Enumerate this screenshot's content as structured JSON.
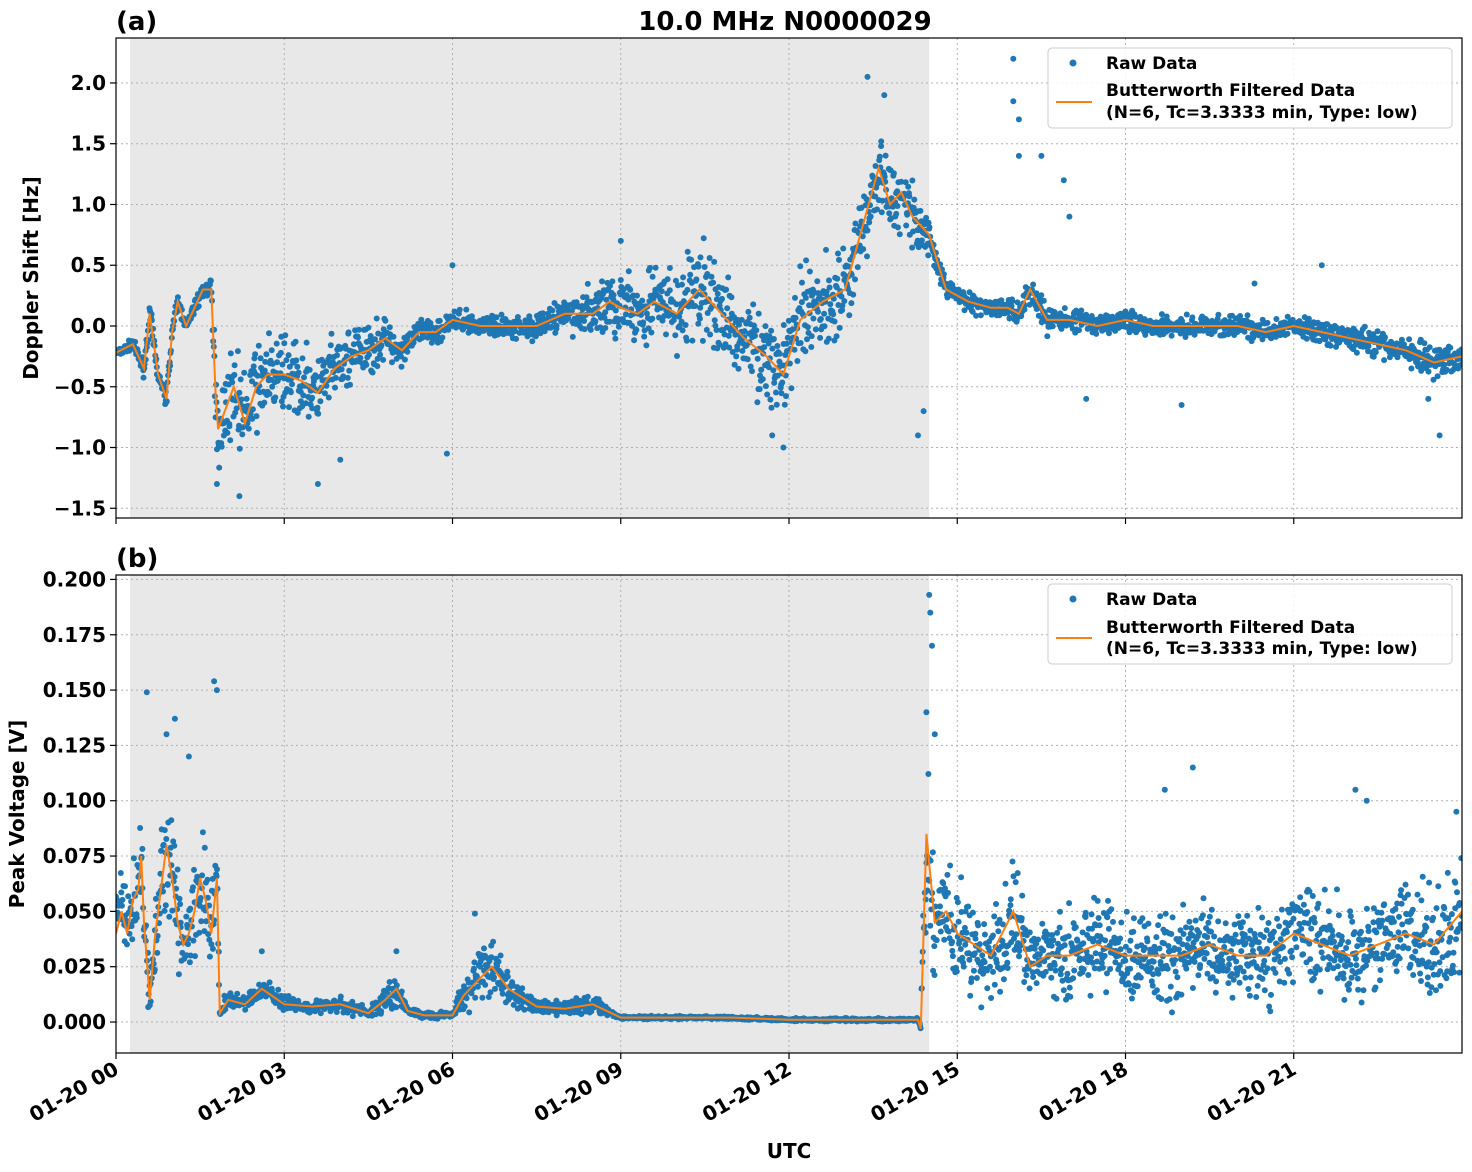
{
  "figure_title": "10.0 MHz N0000029",
  "x_axis": {
    "label": "UTC",
    "tick_labels": [
      "01-20 00",
      "01-20 03",
      "01-20 06",
      "01-20 09",
      "01-20 12",
      "01-20 15",
      "01-20 18",
      "01-20 21"
    ],
    "tick_hours": [
      0,
      3,
      6,
      9,
      12,
      15,
      18,
      21
    ],
    "range_hours": [
      0,
      24
    ]
  },
  "legend": {
    "raw_label": "Raw Data",
    "filtered_label_line1": "Butterworth Filtered Data",
    "filtered_label_line2": "(N=6, Tc=3.3333 min, Type: low)"
  },
  "colors": {
    "raw": "#1f77b4",
    "filtered": "#ff7f0e",
    "shade": "#e8e8e8"
  },
  "chart_data": [
    {
      "type": "scatter",
      "panel_label": "(a)",
      "ylabel": "Doppler Shift [Hz]",
      "ylim": [
        -1.58,
        2.37
      ],
      "yticks": [
        -1.5,
        -1.0,
        -0.5,
        0.0,
        0.5,
        1.0,
        1.5,
        2.0
      ],
      "ytick_labels": [
        "−1.5",
        "−1.0",
        "−0.5",
        "0.0",
        "0.5",
        "1.0",
        "1.5",
        "2.0"
      ],
      "grid": true,
      "legend_position": "top-right",
      "shaded_region_hours": [
        0.25,
        14.5
      ],
      "series": [
        {
          "name": "Butterworth Filtered Data",
          "kind": "line",
          "x": [
            0,
            0.3,
            0.5,
            0.6,
            0.75,
            0.9,
            1.0,
            1.1,
            1.25,
            1.4,
            1.55,
            1.7,
            1.78,
            1.82,
            1.9,
            2.1,
            2.3,
            2.5,
            2.7,
            3.0,
            3.3,
            3.6,
            3.9,
            4.2,
            4.5,
            4.8,
            5.1,
            5.4,
            5.7,
            6.0,
            6.5,
            7.0,
            7.5,
            8.0,
            8.5,
            8.8,
            9.0,
            9.3,
            9.6,
            10.0,
            10.4,
            10.8,
            11.2,
            11.6,
            11.9,
            12.2,
            12.6,
            13.0,
            13.3,
            13.6,
            13.8,
            14.0,
            14.2,
            14.5,
            14.8,
            15.2,
            15.6,
            15.9,
            16.1,
            16.3,
            16.6,
            17.0,
            17.5,
            18.0,
            18.5,
            19.0,
            19.5,
            20.0,
            20.5,
            21.0,
            21.5,
            22.0,
            22.5,
            23.0,
            23.5,
            24.0
          ],
          "y": [
            -0.22,
            -0.15,
            -0.35,
            0.1,
            -0.4,
            -0.6,
            -0.05,
            0.2,
            0.0,
            0.15,
            0.3,
            0.3,
            -0.6,
            -0.85,
            -0.75,
            -0.5,
            -0.8,
            -0.5,
            -0.4,
            -0.4,
            -0.45,
            -0.55,
            -0.35,
            -0.25,
            -0.2,
            -0.1,
            -0.2,
            -0.05,
            -0.05,
            0.05,
            0.0,
            0.0,
            0.0,
            0.1,
            0.1,
            0.2,
            0.15,
            0.1,
            0.2,
            0.1,
            0.3,
            0.1,
            -0.1,
            -0.25,
            -0.4,
            0.05,
            0.2,
            0.3,
            0.8,
            1.3,
            1.0,
            1.1,
            0.9,
            0.75,
            0.3,
            0.2,
            0.15,
            0.15,
            0.1,
            0.3,
            0.05,
            0.05,
            0.0,
            0.05,
            0.0,
            0.0,
            0.0,
            0.0,
            -0.05,
            0.0,
            -0.05,
            -0.1,
            -0.15,
            -0.2,
            -0.3,
            -0.25
          ]
        },
        {
          "name": "Raw Data",
          "kind": "scatter_envelope",
          "x": [
            0,
            0.3,
            0.5,
            0.6,
            0.75,
            0.9,
            1.0,
            1.1,
            1.25,
            1.4,
            1.55,
            1.7,
            1.78,
            1.82,
            1.9,
            2.1,
            2.3,
            2.5,
            2.7,
            3.0,
            3.3,
            3.6,
            3.9,
            4.2,
            4.5,
            4.8,
            5.1,
            5.4,
            5.7,
            6.0,
            6.5,
            7.0,
            7.5,
            8.0,
            8.5,
            8.8,
            9.0,
            9.3,
            9.6,
            10.0,
            10.4,
            10.8,
            11.2,
            11.6,
            11.9,
            12.2,
            12.6,
            13.0,
            13.3,
            13.6,
            13.8,
            14.0,
            14.2,
            14.5,
            14.8,
            15.2,
            15.6,
            15.9,
            16.1,
            16.3,
            16.6,
            17.0,
            17.5,
            18.0,
            18.5,
            19.0,
            19.5,
            20.0,
            20.5,
            21.0,
            21.5,
            22.0,
            22.5,
            23.0,
            23.5,
            24.0
          ],
          "spread": [
            0.06,
            0.06,
            0.1,
            0.15,
            0.1,
            0.1,
            0.1,
            0.08,
            0.08,
            0.08,
            0.08,
            0.1,
            0.4,
            0.5,
            0.4,
            0.45,
            0.55,
            0.5,
            0.45,
            0.4,
            0.4,
            0.4,
            0.4,
            0.35,
            0.3,
            0.25,
            0.2,
            0.15,
            0.15,
            0.12,
            0.12,
            0.12,
            0.15,
            0.2,
            0.3,
            0.35,
            0.4,
            0.4,
            0.45,
            0.5,
            0.55,
            0.5,
            0.45,
            0.5,
            0.5,
            0.55,
            0.55,
            0.55,
            0.5,
            0.5,
            0.45,
            0.45,
            0.4,
            0.2,
            0.12,
            0.12,
            0.12,
            0.12,
            0.15,
            0.2,
            0.15,
            0.15,
            0.12,
            0.12,
            0.12,
            0.12,
            0.12,
            0.12,
            0.12,
            0.12,
            0.15,
            0.15,
            0.15,
            0.15,
            0.2,
            0.15
          ],
          "outliers": [
            [
              1.8,
              -1.3
            ],
            [
              2.2,
              -1.4
            ],
            [
              3.6,
              -1.3
            ],
            [
              4.0,
              -1.1
            ],
            [
              5.9,
              -1.05
            ],
            [
              6.0,
              0.5
            ],
            [
              9.0,
              0.7
            ],
            [
              11.7,
              -0.9
            ],
            [
              11.9,
              -1.0
            ],
            [
              13.4,
              2.05
            ],
            [
              13.7,
              1.9
            ],
            [
              14.3,
              -0.9
            ],
            [
              14.4,
              -0.7
            ],
            [
              16.0,
              2.2
            ],
            [
              16.0,
              1.85
            ],
            [
              16.1,
              1.7
            ],
            [
              16.1,
              1.4
            ],
            [
              16.5,
              1.4
            ],
            [
              16.9,
              1.2
            ],
            [
              17.0,
              0.9
            ],
            [
              17.3,
              -0.6
            ],
            [
              19.0,
              -0.65
            ],
            [
              20.3,
              0.35
            ],
            [
              21.5,
              0.5
            ],
            [
              23.4,
              -0.6
            ],
            [
              23.6,
              -0.9
            ]
          ]
        }
      ]
    },
    {
      "type": "scatter",
      "panel_label": "(b)",
      "ylabel": "Peak Voltage [V]",
      "ylim": [
        -0.014,
        0.202
      ],
      "yticks": [
        0.0,
        0.025,
        0.05,
        0.075,
        0.1,
        0.125,
        0.15,
        0.175,
        0.2
      ],
      "ytick_labels": [
        "0.000",
        "0.025",
        "0.050",
        "0.075",
        "0.100",
        "0.125",
        "0.150",
        "0.175",
        "0.200"
      ],
      "grid": true,
      "legend_position": "top-right",
      "shaded_region_hours": [
        0.25,
        14.5
      ],
      "series": [
        {
          "name": "Butterworth Filtered Data",
          "kind": "line",
          "x": [
            0,
            0.1,
            0.2,
            0.3,
            0.4,
            0.45,
            0.5,
            0.6,
            0.7,
            0.8,
            0.9,
            1.0,
            1.1,
            1.2,
            1.3,
            1.4,
            1.5,
            1.6,
            1.7,
            1.8,
            1.85,
            2.0,
            2.3,
            2.6,
            3.0,
            3.5,
            4.0,
            4.5,
            4.8,
            5.0,
            5.2,
            5.5,
            6.0,
            6.2,
            6.5,
            6.7,
            7.0,
            7.5,
            8.0,
            8.5,
            9.0,
            10.0,
            11.0,
            12.0,
            13.0,
            14.0,
            14.3,
            14.35,
            14.45,
            14.6,
            14.8,
            15.0,
            15.3,
            15.6,
            16.0,
            16.3,
            16.6,
            17.0,
            17.5,
            18.0,
            18.5,
            19.0,
            19.5,
            20.0,
            20.5,
            21.0,
            21.5,
            22.0,
            22.5,
            23.0,
            23.5,
            24.0
          ],
          "y": [
            0.04,
            0.05,
            0.04,
            0.055,
            0.06,
            0.075,
            0.045,
            0.01,
            0.04,
            0.06,
            0.08,
            0.065,
            0.045,
            0.035,
            0.04,
            0.05,
            0.065,
            0.055,
            0.04,
            0.065,
            0.004,
            0.01,
            0.008,
            0.015,
            0.008,
            0.007,
            0.008,
            0.004,
            0.01,
            0.015,
            0.005,
            0.003,
            0.003,
            0.012,
            0.02,
            0.025,
            0.015,
            0.007,
            0.006,
            0.008,
            0.002,
            0.002,
            0.002,
            0.001,
            0.001,
            0.001,
            0.001,
            -0.003,
            0.085,
            0.045,
            0.05,
            0.04,
            0.035,
            0.03,
            0.05,
            0.025,
            0.03,
            0.03,
            0.035,
            0.03,
            0.03,
            0.03,
            0.035,
            0.03,
            0.03,
            0.04,
            0.035,
            0.03,
            0.035,
            0.04,
            0.035,
            0.05
          ]
        },
        {
          "name": "Raw Data",
          "kind": "scatter_envelope",
          "x": [
            0,
            0.1,
            0.2,
            0.3,
            0.4,
            0.45,
            0.5,
            0.6,
            0.7,
            0.8,
            0.9,
            1.0,
            1.1,
            1.2,
            1.3,
            1.4,
            1.5,
            1.6,
            1.7,
            1.8,
            1.85,
            2.0,
            2.3,
            2.6,
            3.0,
            3.5,
            4.0,
            4.5,
            4.8,
            5.0,
            5.2,
            5.5,
            6.0,
            6.2,
            6.5,
            6.7,
            7.0,
            7.5,
            8.0,
            8.5,
            9.0,
            10.0,
            11.0,
            12.0,
            13.0,
            14.0,
            14.3,
            14.35,
            14.45,
            14.6,
            14.8,
            15.0,
            15.3,
            15.6,
            16.0,
            16.3,
            16.6,
            17.0,
            17.5,
            18.0,
            18.5,
            19.0,
            19.5,
            20.0,
            20.5,
            21.0,
            21.5,
            22.0,
            22.5,
            23.0,
            23.5,
            24.0
          ],
          "spread": [
            0.025,
            0.03,
            0.025,
            0.025,
            0.03,
            0.03,
            0.02,
            0.01,
            0.025,
            0.03,
            0.04,
            0.035,
            0.03,
            0.025,
            0.025,
            0.03,
            0.035,
            0.03,
            0.025,
            0.03,
            0.004,
            0.006,
            0.006,
            0.008,
            0.005,
            0.004,
            0.005,
            0.003,
            0.008,
            0.012,
            0.003,
            0.002,
            0.002,
            0.012,
            0.018,
            0.02,
            0.01,
            0.005,
            0.004,
            0.006,
            0.001,
            0.001,
            0.001,
            0.001,
            0.001,
            0.001,
            0.001,
            0.002,
            0.06,
            0.04,
            0.035,
            0.03,
            0.03,
            0.028,
            0.03,
            0.025,
            0.028,
            0.03,
            0.03,
            0.03,
            0.03,
            0.03,
            0.03,
            0.03,
            0.03,
            0.032,
            0.03,
            0.03,
            0.032,
            0.035,
            0.035,
            0.04
          ],
          "outliers": [
            [
              0.55,
              0.149
            ],
            [
              1.05,
              0.137
            ],
            [
              0.9,
              0.13
            ],
            [
              1.75,
              0.154
            ],
            [
              1.8,
              0.15
            ],
            [
              1.3,
              0.12
            ],
            [
              14.5,
              0.193
            ],
            [
              14.52,
              0.185
            ],
            [
              14.55,
              0.17
            ],
            [
              14.45,
              0.14
            ],
            [
              14.6,
              0.13
            ],
            [
              19.2,
              0.115
            ],
            [
              18.7,
              0.105
            ],
            [
              22.1,
              0.105
            ],
            [
              22.3,
              0.1
            ],
            [
              23.9,
              0.095
            ],
            [
              6.4,
              0.049
            ],
            [
              5.0,
              0.032
            ],
            [
              2.6,
              0.032
            ]
          ]
        }
      ]
    }
  ]
}
